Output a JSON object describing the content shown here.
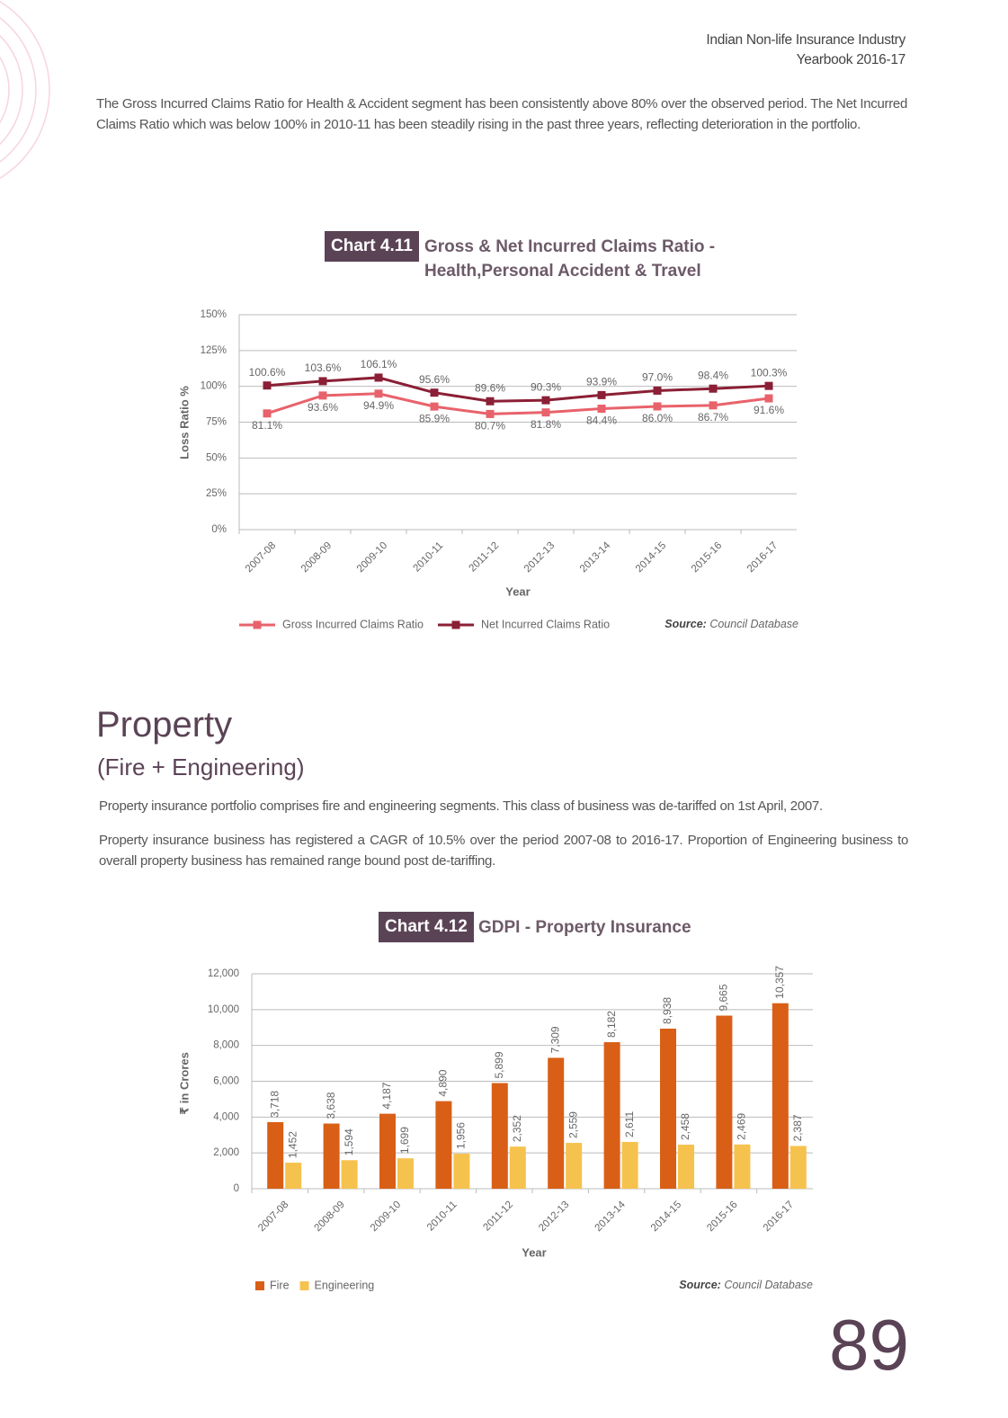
{
  "header": {
    "line1": "Indian Non-life Insurance Industry",
    "line2": "Yearbook 2016-17"
  },
  "intro": "The Gross Incurred Claims Ratio for Health & Accident segment has been consistently above 80% over the observed period. The Net Incurred Claims Ratio which was below 100% in 2010-11 has been steadily rising in the past three years, reflecting deterioration in the portfolio.",
  "section": {
    "heading": "Property",
    "subheading": "(Fire + Engineering)",
    "paragraphs": [
      "Property insurance portfolio comprises fire and engineering segments. This class of business was de-tariffed on 1st April, 2007.",
      "Property insurance business has registered a CAGR of 10.5% over the period 2007-08 to 2016-17. Proportion of Engineering business to overall property business has remained range bound post de-tariffing."
    ]
  },
  "page_number": "89",
  "chart_data": [
    {
      "type": "line",
      "label": "Chart 4.11",
      "title": "Gross & Net Incurred Claims Ratio - Health,Personal Accident & Travel",
      "x_label": "Year",
      "y_label": "Loss Ratio %",
      "source_label": "Source:",
      "source": "Council Database",
      "categories": [
        "2007-08",
        "2008-09",
        "2009-10",
        "2010-11",
        "2011-12",
        "2012-13",
        "2013-14",
        "2014-15",
        "2015-16",
        "2016-17"
      ],
      "ylim": [
        0,
        150
      ],
      "yticks": [
        {
          "value": 0,
          "label": "0%"
        },
        {
          "value": 25,
          "label": "25%"
        },
        {
          "value": 50,
          "label": "50%"
        },
        {
          "value": 75,
          "label": "75%"
        },
        {
          "value": 100,
          "label": "100%"
        },
        {
          "value": 125,
          "label": "125%"
        },
        {
          "value": 150,
          "label": "150%"
        }
      ],
      "grid": true,
      "series": [
        {
          "name": "Gross Incurred Claims Ratio",
          "color": "#e8626b",
          "values": [
            81.1,
            93.6,
            94.9,
            85.9,
            80.7,
            81.8,
            84.4,
            86.0,
            86.7,
            91.6
          ],
          "value_labels": [
            "81.1%",
            "93.6%",
            "94.9%",
            "85.9%",
            "80.7%",
            "81.8%",
            "84.4%",
            "86.0%",
            "86.7%",
            "91.6%"
          ]
        },
        {
          "name": "Net Incurred Claims Ratio",
          "color": "#8b1f35",
          "values": [
            100.6,
            103.6,
            106.1,
            95.6,
            89.6,
            90.3,
            93.9,
            97.0,
            98.4,
            100.3
          ],
          "value_labels": [
            "100.6%",
            "103.6%",
            "106.1%",
            "95.6%",
            "89.6%",
            "90.3%",
            "93.9%",
            "97.0%",
            "98.4%",
            "100.3%"
          ]
        }
      ]
    },
    {
      "type": "bar",
      "label": "Chart 4.12",
      "title": "GDPI - Property Insurance",
      "x_label": "Year",
      "y_label": "₹ in Crores",
      "source_label": "Source:",
      "source": "Council Database",
      "categories": [
        "2007-08",
        "2008-09",
        "2009-10",
        "2010-11",
        "2011-12",
        "2012-13",
        "2013-14",
        "2014-15",
        "2015-16",
        "2016-17"
      ],
      "ylim": [
        0,
        12000
      ],
      "yticks": [
        0,
        {
          "value": 2000,
          "label": "2,000"
        },
        {
          "value": 4000,
          "label": "4,000"
        },
        {
          "value": 6000,
          "label": "6,000"
        },
        {
          "value": 8000,
          "label": "8,000"
        },
        {
          "value": 10000,
          "label": "10,000"
        },
        {
          "value": 12000,
          "label": "12,000"
        }
      ],
      "grid": true,
      "series": [
        {
          "name": "Fire",
          "color": "#d95f17",
          "values": [
            3718,
            3638,
            4187,
            4890,
            5899,
            7309,
            8182,
            8938,
            9665,
            10357
          ],
          "value_labels": [
            "3,718",
            "3,638",
            "4,187",
            "4,890",
            "5,899",
            "7,309",
            "8,182",
            "8,938",
            "9,665",
            "10,357"
          ]
        },
        {
          "name": "Engineering",
          "color": "#f6c24e",
          "values": [
            1452,
            1594,
            1699,
            1956,
            2352,
            2559,
            2611,
            2458,
            2469,
            2387
          ],
          "value_labels": [
            "1,452",
            "1,594",
            "1,699",
            "1,956",
            "2,352",
            "2,559",
            "2,611",
            "2,458",
            "2,469",
            "2,387"
          ]
        }
      ]
    }
  ]
}
